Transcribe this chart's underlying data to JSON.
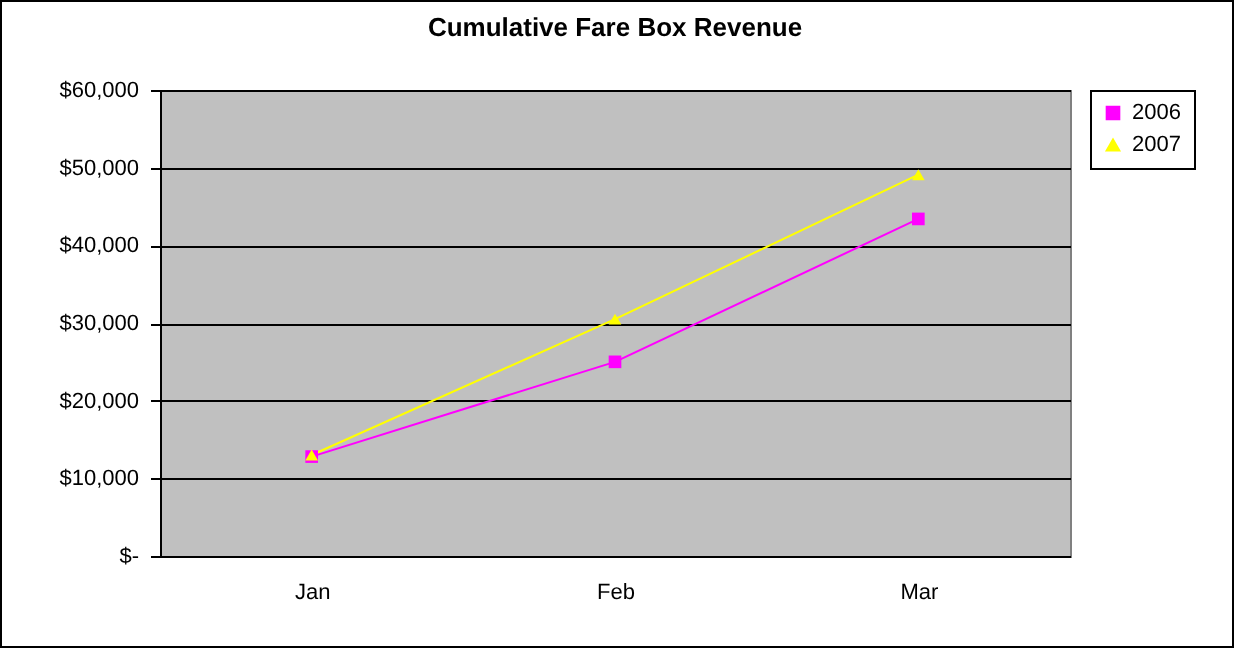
{
  "chart_data": {
    "type": "line",
    "title": "Cumulative Fare Box Revenue",
    "categories": [
      "Jan",
      "Feb",
      "Mar"
    ],
    "series": [
      {
        "name": "2006",
        "color": "#ff00ff",
        "marker": "square",
        "values": [
          12800,
          25000,
          43400
        ]
      },
      {
        "name": "2007",
        "color": "#ffff00",
        "marker": "triangle",
        "values": [
          13000,
          30500,
          49100
        ]
      }
    ],
    "ylim": [
      0,
      60000
    ],
    "yticks": [
      {
        "value": 0,
        "label": "$-"
      },
      {
        "value": 10000,
        "label": "$10,000"
      },
      {
        "value": 20000,
        "label": "$20,000"
      },
      {
        "value": 30000,
        "label": "$30,000"
      },
      {
        "value": 40000,
        "label": "$40,000"
      },
      {
        "value": 50000,
        "label": "$50,000"
      },
      {
        "value": 60000,
        "label": "$60,000"
      }
    ],
    "grid": "y",
    "legend": "right",
    "line_style": "solid"
  }
}
